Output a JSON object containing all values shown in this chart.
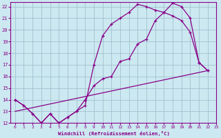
{
  "xlabel": "Windchill (Refroidissement éolien,°C)",
  "xlim": [
    -0.5,
    23
  ],
  "ylim": [
    12,
    22.4
  ],
  "xticks": [
    0,
    1,
    2,
    3,
    4,
    5,
    6,
    7,
    8,
    9,
    10,
    11,
    12,
    13,
    14,
    15,
    16,
    17,
    18,
    19,
    20,
    21,
    22,
    23
  ],
  "yticks": [
    12,
    13,
    14,
    15,
    16,
    17,
    18,
    19,
    20,
    21,
    22
  ],
  "bg_color": "#cce8f0",
  "line_color": "#880088",
  "grid_color": "#99bbcc",
  "lines": [
    {
      "x": [
        0,
        1,
        2,
        3,
        4,
        5,
        6,
        7,
        8,
        9,
        10,
        11,
        12,
        13,
        14,
        15,
        16,
        17,
        18,
        19,
        20,
        21,
        22
      ],
      "y": [
        14.0,
        13.5,
        12.8,
        12.0,
        12.8,
        12.0,
        12.5,
        13.0,
        13.5,
        17.0,
        19.5,
        20.5,
        21.0,
        21.5,
        22.2,
        22.0,
        21.7,
        21.5,
        21.2,
        20.8,
        19.8,
        17.2,
        16.5
      ],
      "marker": true
    },
    {
      "x": [
        0,
        1,
        2,
        3,
        4,
        5,
        6,
        7,
        8,
        9,
        10,
        11,
        12,
        13,
        14,
        15,
        16,
        17,
        18,
        19,
        20,
        21,
        22
      ],
      "y": [
        14.0,
        13.5,
        12.8,
        12.0,
        12.8,
        12.0,
        12.5,
        13.0,
        14.0,
        15.2,
        15.8,
        16.0,
        17.3,
        17.5,
        18.8,
        19.2,
        20.8,
        21.5,
        22.3,
        22.0,
        21.0,
        17.2,
        16.5
      ],
      "marker": true
    },
    {
      "x": [
        0,
        22
      ],
      "y": [
        13.0,
        16.5
      ],
      "marker": false
    }
  ]
}
